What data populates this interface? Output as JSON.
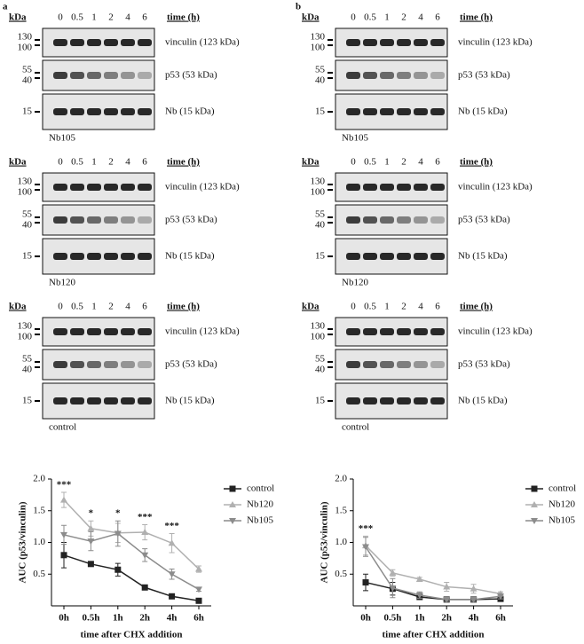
{
  "panel_labels": [
    "a",
    "b"
  ],
  "blot_labels": {
    "kda": "kDa",
    "time": "time (h)",
    "lanes": [
      "0",
      "0.5",
      "1",
      "2",
      "4",
      "6"
    ],
    "markers": {
      "vinculin": [
        "130",
        "100"
      ],
      "p53": [
        "55",
        "40"
      ],
      "nb": [
        "15"
      ]
    },
    "bands": [
      "vinculin (123 kDa)",
      "p53 (53 kDa)",
      "Nb (15 kDa)"
    ]
  },
  "blot_panels": [
    {
      "samples": [
        "Nb105",
        "Nb120",
        "control"
      ]
    },
    {
      "samples": [
        "Nb105",
        "Nb120",
        "control"
      ]
    }
  ],
  "chart_data": [
    {
      "type": "line",
      "ylabel": "AUC (p53/vinculin)",
      "xlabel": "time after CHX addition",
      "categories": [
        "0h",
        "0.5h",
        "1h",
        "2h",
        "4h",
        "6h"
      ],
      "ylim": [
        0,
        2
      ],
      "yticks": [
        0.5,
        {
          "value": 1.0,
          "label": "1.0"
        },
        1.5,
        {
          "value": 2.0,
          "label": "2.0"
        }
      ],
      "series": [
        {
          "name": "control",
          "color": "#222222",
          "marker": "square",
          "values": [
            0.8,
            0.66,
            0.57,
            0.29,
            0.15,
            0.08
          ],
          "errors": [
            0.2,
            0.02,
            0.1,
            0.02,
            0.02,
            0.02
          ]
        },
        {
          "name": "Nb120",
          "color": "#b0b0b0",
          "marker": "triangle-up",
          "values": [
            1.67,
            1.22,
            1.15,
            1.16,
            0.99,
            0.58
          ],
          "errors": [
            0.12,
            0.12,
            0.15,
            0.12,
            0.15,
            0.05
          ]
        },
        {
          "name": "Nb105",
          "color": "#8c8c8c",
          "marker": "triangle-down",
          "values": [
            1.12,
            1.02,
            1.14,
            0.8,
            0.5,
            0.26
          ],
          "errors": [
            0.15,
            0.15,
            0.2,
            0.1,
            0.08,
            0.03
          ]
        }
      ],
      "annotations": [
        {
          "text": "***",
          "at": "0h"
        },
        {
          "text": "*",
          "at": "0.5h"
        },
        {
          "text": "*",
          "at": "1h"
        },
        {
          "text": "***",
          "at": "2h"
        },
        {
          "text": "***",
          "at": "4h"
        }
      ]
    },
    {
      "type": "line",
      "ylabel": "AUC (p53/vinculin)",
      "xlabel": "time after CHX addition",
      "categories": [
        "0h",
        "0.5h",
        "1h",
        "2h",
        "4h",
        "6h"
      ],
      "ylim": [
        0,
        2
      ],
      "yticks": [
        0.5,
        {
          "value": 1.0,
          "label": "1.0"
        },
        1.5,
        {
          "value": 2.0,
          "label": "2.0"
        }
      ],
      "series": [
        {
          "name": "control",
          "color": "#222222",
          "marker": "square",
          "values": [
            0.37,
            0.27,
            0.14,
            0.1,
            0.1,
            0.11
          ],
          "errors": [
            0.13,
            0.1,
            0.03,
            0.02,
            0.03,
            0.03
          ]
        },
        {
          "name": "Nb120",
          "color": "#b0b0b0",
          "marker": "triangle-up",
          "values": [
            0.95,
            0.52,
            0.42,
            0.3,
            0.27,
            0.19
          ],
          "errors": [
            0.15,
            0.05,
            0.03,
            0.07,
            0.07,
            0.03
          ]
        },
        {
          "name": "Nb105",
          "color": "#8c8c8c",
          "marker": "triangle-down",
          "values": [
            0.93,
            0.28,
            0.17,
            0.1,
            0.1,
            0.15
          ],
          "errors": [
            0.15,
            0.15,
            0.05,
            0.03,
            0.03,
            0.04
          ]
        }
      ],
      "annotations": [
        {
          "text": "***",
          "at": "0h"
        }
      ]
    }
  ]
}
